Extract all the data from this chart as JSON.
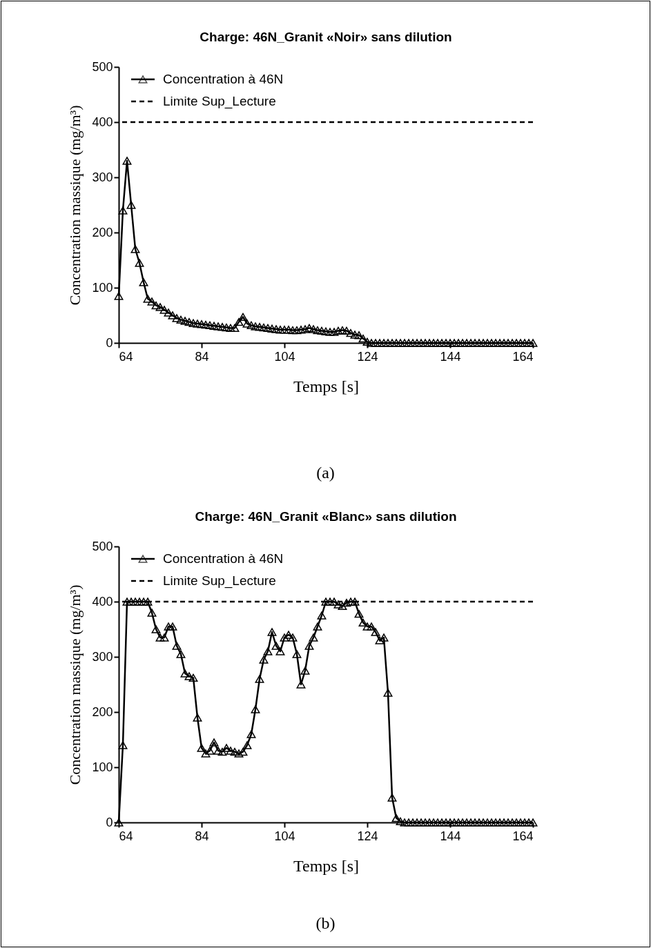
{
  "chart_data": [
    {
      "type": "line",
      "title": "Charge: 46N_Granit «Noir» sans dilution",
      "xlabel": "Temps [s]",
      "ylabel": "Concentration massique (mg/m³)",
      "annotations": [
        "(a)"
      ],
      "x": [
        64,
        65,
        66,
        67,
        68,
        69,
        70,
        71,
        72,
        73,
        74,
        75,
        76,
        77,
        78,
        79,
        80,
        81,
        82,
        83,
        84,
        85,
        86,
        87,
        88,
        89,
        90,
        91,
        92,
        93,
        94,
        95,
        96,
        97,
        98,
        99,
        100,
        101,
        102,
        103,
        104,
        105,
        106,
        107,
        108,
        109,
        110,
        111,
        112,
        113,
        114,
        115,
        116,
        117,
        118,
        119,
        120,
        121,
        122,
        123,
        124,
        125,
        126,
        127,
        128,
        129,
        130,
        131,
        132,
        133,
        134,
        135,
        136,
        137,
        138,
        139,
        140,
        141,
        142,
        143,
        144,
        145,
        146,
        147,
        148,
        149,
        150,
        151,
        152,
        153,
        154,
        155,
        156,
        157,
        158,
        159,
        160,
        161,
        162,
        163,
        164
      ],
      "series": [
        {
          "name": "Concentration à 46N",
          "color": "#000000",
          "values": [
            85,
            240,
            330,
            250,
            170,
            145,
            110,
            80,
            75,
            68,
            65,
            60,
            55,
            50,
            45,
            42,
            40,
            38,
            36,
            35,
            34,
            33,
            32,
            31,
            30,
            29,
            28,
            27,
            27,
            38,
            47,
            35,
            32,
            30,
            29,
            28,
            27,
            26,
            25,
            24,
            24,
            24,
            23,
            23,
            24,
            25,
            27,
            25,
            23,
            22,
            21,
            20,
            20,
            22,
            23,
            22,
            18,
            15,
            14,
            8,
            2,
            0,
            0,
            0,
            0,
            0,
            0,
            0,
            0,
            0,
            0,
            0,
            0,
            0,
            0,
            0,
            0,
            0,
            0,
            0,
            0,
            0,
            0,
            0,
            0,
            0,
            0,
            0,
            0,
            0,
            0,
            0,
            0,
            0,
            0,
            0,
            0,
            0,
            0,
            0,
            0
          ]
        }
      ],
      "xlim": [
        64,
        164
      ],
      "xticks": [
        64,
        84,
        104,
        124,
        144,
        164
      ],
      "ylim": [
        0,
        500
      ],
      "yticks": [
        0,
        100,
        200,
        300,
        400,
        500
      ],
      "ref_lines": [
        {
          "axis": "y",
          "value": 400,
          "label": "Limite Sup_Lecture",
          "color": "#000000",
          "line_style": "dashed"
        }
      ],
      "legend": "top left",
      "marker": "triangle",
      "line_style": "solid",
      "grid": false
    },
    {
      "type": "line",
      "title": "Charge: 46N_Granit «Blanc» sans dilution",
      "xlabel": "Temps [s]",
      "ylabel": "Concentration massique (mg/m³)",
      "annotations": [
        "(b)"
      ],
      "x": [
        64,
        65,
        66,
        67,
        68,
        69,
        70,
        71,
        72,
        73,
        74,
        75,
        76,
        77,
        78,
        79,
        80,
        81,
        82,
        83,
        84,
        85,
        86,
        87,
        88,
        89,
        90,
        91,
        92,
        93,
        94,
        95,
        96,
        97,
        98,
        99,
        100,
        101,
        102,
        103,
        104,
        105,
        106,
        107,
        108,
        109,
        110,
        111,
        112,
        113,
        114,
        115,
        116,
        117,
        118,
        119,
        120,
        121,
        122,
        123,
        124,
        125,
        126,
        127,
        128,
        129,
        130,
        131,
        132,
        133,
        134,
        135,
        136,
        137,
        138,
        139,
        140,
        141,
        142,
        143,
        144,
        145,
        146,
        147,
        148,
        149,
        150,
        151,
        152,
        153,
        154,
        155,
        156,
        157,
        158,
        159,
        160,
        161,
        162,
        163,
        164
      ],
      "series": [
        {
          "name": "Concentration à 46N",
          "color": "#000000",
          "values": [
            0,
            140,
            400,
            400,
            400,
            400,
            400,
            400,
            380,
            350,
            335,
            335,
            355,
            355,
            320,
            305,
            270,
            265,
            262,
            190,
            135,
            125,
            130,
            145,
            130,
            128,
            135,
            130,
            128,
            125,
            128,
            140,
            160,
            205,
            260,
            295,
            310,
            345,
            320,
            310,
            335,
            340,
            335,
            305,
            250,
            275,
            320,
            335,
            355,
            375,
            400,
            400,
            400,
            395,
            392,
            398,
            400,
            400,
            378,
            362,
            355,
            355,
            345,
            330,
            335,
            235,
            45,
            8,
            2,
            0,
            0,
            0,
            0,
            0,
            0,
            0,
            0,
            0,
            0,
            0,
            0,
            0,
            0,
            0,
            0,
            0,
            0,
            0,
            0,
            0,
            0,
            0,
            0,
            0,
            0,
            0,
            0,
            0,
            0,
            0,
            0
          ]
        }
      ],
      "xlim": [
        64,
        164
      ],
      "xticks": [
        64,
        84,
        104,
        124,
        144,
        164
      ],
      "ylim": [
        0,
        500
      ],
      "yticks": [
        0,
        100,
        200,
        300,
        400,
        500
      ],
      "ref_lines": [
        {
          "axis": "y",
          "value": 400,
          "label": "Limite Sup_Lecture",
          "color": "#000000",
          "line_style": "dashed"
        }
      ],
      "legend": "top left",
      "marker": "triangle",
      "line_style": "solid",
      "grid": false
    }
  ]
}
